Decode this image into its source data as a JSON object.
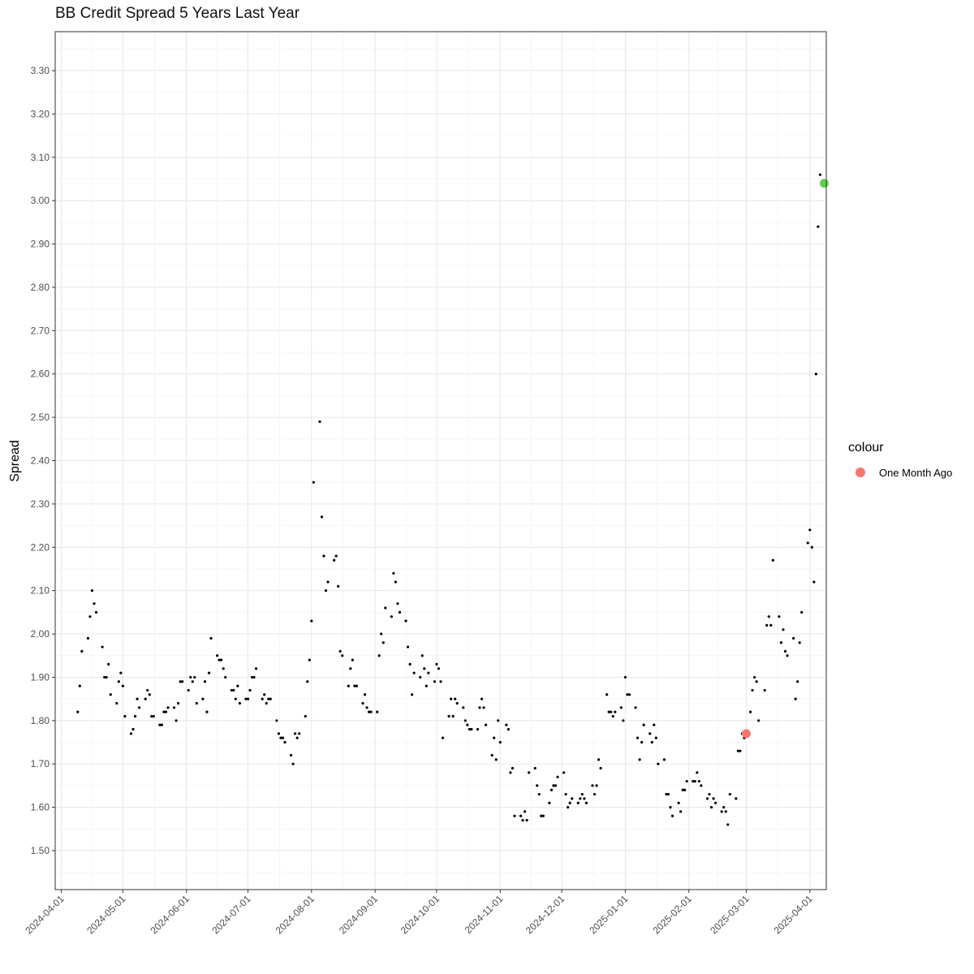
{
  "chart_data": {
    "type": "scatter",
    "title": "BB Credit Spread 5 Years Last Year",
    "xlabel": "",
    "ylabel": "Spread",
    "x_axis": "date",
    "xlim": [
      "2024-03-29",
      "2025-04-09"
    ],
    "ylim": [
      1.41,
      3.39
    ],
    "x_ticks": [
      "2024-04-01",
      "2024-05-01",
      "2024-06-01",
      "2024-07-01",
      "2024-08-01",
      "2024-09-01",
      "2024-10-01",
      "2024-11-01",
      "2024-12-01",
      "2025-01-01",
      "2025-02-01",
      "2025-03-01",
      "2025-04-01"
    ],
    "y_ticks": [
      1.5,
      1.6,
      1.7,
      1.8,
      1.9,
      2.0,
      2.1,
      2.2,
      2.3,
      2.4,
      2.5,
      2.6,
      2.7,
      2.8,
      2.9,
      3.0,
      3.1,
      3.2,
      3.3
    ],
    "grid": true,
    "legend": {
      "title": "colour",
      "position": "right",
      "entries": [
        {
          "label": "One Month Ago",
          "color": "#F8766D"
        }
      ]
    },
    "series": [
      {
        "color": "#000000",
        "points": [
          [
            "2024-04-09",
            1.82
          ],
          [
            "2024-04-10",
            1.88
          ],
          [
            "2024-04-11",
            1.96
          ],
          [
            "2024-04-14",
            1.99
          ],
          [
            "2024-04-15",
            2.04
          ],
          [
            "2024-04-16",
            2.1
          ],
          [
            "2024-04-17",
            2.07
          ],
          [
            "2024-04-18",
            2.05
          ],
          [
            "2024-04-21",
            1.97
          ],
          [
            "2024-04-22",
            1.9
          ],
          [
            "2024-04-23",
            1.9
          ],
          [
            "2024-04-24",
            1.93
          ],
          [
            "2024-04-25",
            1.86
          ],
          [
            "2024-04-28",
            1.84
          ],
          [
            "2024-04-29",
            1.89
          ],
          [
            "2024-04-30",
            1.91
          ],
          [
            "2024-05-01",
            1.88
          ],
          [
            "2024-05-02",
            1.81
          ],
          [
            "2024-05-05",
            1.77
          ],
          [
            "2024-05-06",
            1.78
          ],
          [
            "2024-05-07",
            1.81
          ],
          [
            "2024-05-08",
            1.85
          ],
          [
            "2024-05-09",
            1.83
          ],
          [
            "2024-05-12",
            1.85
          ],
          [
            "2024-05-13",
            1.87
          ],
          [
            "2024-05-14",
            1.86
          ],
          [
            "2024-05-15",
            1.81
          ],
          [
            "2024-05-16",
            1.81
          ],
          [
            "2024-05-19",
            1.79
          ],
          [
            "2024-05-20",
            1.79
          ],
          [
            "2024-05-21",
            1.82
          ],
          [
            "2024-05-22",
            1.82
          ],
          [
            "2024-05-23",
            1.83
          ],
          [
            "2024-05-26",
            1.83
          ],
          [
            "2024-05-27",
            1.8
          ],
          [
            "2024-05-28",
            1.84
          ],
          [
            "2024-05-29",
            1.89
          ],
          [
            "2024-05-30",
            1.89
          ],
          [
            "2024-06-02",
            1.87
          ],
          [
            "2024-06-03",
            1.9
          ],
          [
            "2024-06-04",
            1.89
          ],
          [
            "2024-06-05",
            1.9
          ],
          [
            "2024-06-06",
            1.84
          ],
          [
            "2024-06-09",
            1.85
          ],
          [
            "2024-06-10",
            1.89
          ],
          [
            "2024-06-11",
            1.82
          ],
          [
            "2024-06-12",
            1.91
          ],
          [
            "2024-06-13",
            1.99
          ],
          [
            "2024-06-16",
            1.95
          ],
          [
            "2024-06-17",
            1.94
          ],
          [
            "2024-06-18",
            1.94
          ],
          [
            "2024-06-19",
            1.92
          ],
          [
            "2024-06-20",
            1.9
          ],
          [
            "2024-06-23",
            1.87
          ],
          [
            "2024-06-24",
            1.87
          ],
          [
            "2024-06-25",
            1.85
          ],
          [
            "2024-06-26",
            1.88
          ],
          [
            "2024-06-27",
            1.84
          ],
          [
            "2024-06-30",
            1.85
          ],
          [
            "2024-07-01",
            1.85
          ],
          [
            "2024-07-02",
            1.87
          ],
          [
            "2024-07-03",
            1.9
          ],
          [
            "2024-07-04",
            1.9
          ],
          [
            "2024-07-05",
            1.92
          ],
          [
            "2024-07-08",
            1.85
          ],
          [
            "2024-07-09",
            1.86
          ],
          [
            "2024-07-10",
            1.84
          ],
          [
            "2024-07-11",
            1.85
          ],
          [
            "2024-07-12",
            1.85
          ],
          [
            "2024-07-15",
            1.8
          ],
          [
            "2024-07-16",
            1.77
          ],
          [
            "2024-07-17",
            1.76
          ],
          [
            "2024-07-18",
            1.76
          ],
          [
            "2024-07-19",
            1.75
          ],
          [
            "2024-07-22",
            1.72
          ],
          [
            "2024-07-23",
            1.7
          ],
          [
            "2024-07-24",
            1.77
          ],
          [
            "2024-07-25",
            1.76
          ],
          [
            "2024-07-26",
            1.77
          ],
          [
            "2024-07-29",
            1.81
          ],
          [
            "2024-07-30",
            1.89
          ],
          [
            "2024-07-31",
            1.94
          ],
          [
            "2024-08-01",
            2.03
          ],
          [
            "2024-08-02",
            2.35
          ],
          [
            "2024-08-05",
            2.49
          ],
          [
            "2024-08-06",
            2.27
          ],
          [
            "2024-08-07",
            2.18
          ],
          [
            "2024-08-08",
            2.1
          ],
          [
            "2024-08-09",
            2.12
          ],
          [
            "2024-08-12",
            2.17
          ],
          [
            "2024-08-13",
            2.18
          ],
          [
            "2024-08-14",
            2.11
          ],
          [
            "2024-08-15",
            1.96
          ],
          [
            "2024-08-16",
            1.95
          ],
          [
            "2024-08-19",
            1.88
          ],
          [
            "2024-08-20",
            1.92
          ],
          [
            "2024-08-21",
            1.94
          ],
          [
            "2024-08-22",
            1.88
          ],
          [
            "2024-08-23",
            1.88
          ],
          [
            "2024-08-26",
            1.84
          ],
          [
            "2024-08-27",
            1.86
          ],
          [
            "2024-08-28",
            1.83
          ],
          [
            "2024-08-29",
            1.82
          ],
          [
            "2024-08-30",
            1.82
          ],
          [
            "2024-09-02",
            1.82
          ],
          [
            "2024-09-03",
            1.95
          ],
          [
            "2024-09-04",
            2.0
          ],
          [
            "2024-09-05",
            1.98
          ],
          [
            "2024-09-06",
            2.06
          ],
          [
            "2024-09-09",
            2.04
          ],
          [
            "2024-09-10",
            2.14
          ],
          [
            "2024-09-11",
            2.12
          ],
          [
            "2024-09-12",
            2.07
          ],
          [
            "2024-09-13",
            2.05
          ],
          [
            "2024-09-16",
            2.03
          ],
          [
            "2024-09-17",
            1.97
          ],
          [
            "2024-09-18",
            1.93
          ],
          [
            "2024-09-19",
            1.86
          ],
          [
            "2024-09-20",
            1.91
          ],
          [
            "2024-09-23",
            1.9
          ],
          [
            "2024-09-24",
            1.95
          ],
          [
            "2024-09-25",
            1.92
          ],
          [
            "2024-09-26",
            1.88
          ],
          [
            "2024-09-27",
            1.91
          ],
          [
            "2024-09-30",
            1.89
          ],
          [
            "2024-10-01",
            1.93
          ],
          [
            "2024-10-02",
            1.92
          ],
          [
            "2024-10-03",
            1.89
          ],
          [
            "2024-10-04",
            1.76
          ],
          [
            "2024-10-07",
            1.81
          ],
          [
            "2024-10-08",
            1.85
          ],
          [
            "2024-10-09",
            1.81
          ],
          [
            "2024-10-10",
            1.85
          ],
          [
            "2024-10-11",
            1.84
          ],
          [
            "2024-10-14",
            1.83
          ],
          [
            "2024-10-15",
            1.8
          ],
          [
            "2024-10-16",
            1.79
          ],
          [
            "2024-10-17",
            1.78
          ],
          [
            "2024-10-18",
            1.78
          ],
          [
            "2024-10-21",
            1.78
          ],
          [
            "2024-10-22",
            1.83
          ],
          [
            "2024-10-23",
            1.85
          ],
          [
            "2024-10-24",
            1.83
          ],
          [
            "2024-10-25",
            1.79
          ],
          [
            "2024-10-28",
            1.72
          ],
          [
            "2024-10-29",
            1.76
          ],
          [
            "2024-10-30",
            1.71
          ],
          [
            "2024-10-31",
            1.8
          ],
          [
            "2024-11-01",
            1.75
          ],
          [
            "2024-11-04",
            1.79
          ],
          [
            "2024-11-05",
            1.78
          ],
          [
            "2024-11-06",
            1.68
          ],
          [
            "2024-11-07",
            1.69
          ],
          [
            "2024-11-08",
            1.58
          ],
          [
            "2024-11-11",
            1.58
          ],
          [
            "2024-11-12",
            1.57
          ],
          [
            "2024-11-13",
            1.59
          ],
          [
            "2024-11-14",
            1.57
          ],
          [
            "2024-11-15",
            1.68
          ],
          [
            "2024-11-18",
            1.69
          ],
          [
            "2024-11-19",
            1.65
          ],
          [
            "2024-11-20",
            1.63
          ],
          [
            "2024-11-21",
            1.58
          ],
          [
            "2024-11-22",
            1.58
          ],
          [
            "2024-11-25",
            1.61
          ],
          [
            "2024-11-26",
            1.64
          ],
          [
            "2024-11-27",
            1.65
          ],
          [
            "2024-11-28",
            1.65
          ],
          [
            "2024-11-29",
            1.67
          ],
          [
            "2024-12-02",
            1.68
          ],
          [
            "2024-12-03",
            1.63
          ],
          [
            "2024-12-04",
            1.6
          ],
          [
            "2024-12-05",
            1.61
          ],
          [
            "2024-12-06",
            1.62
          ],
          [
            "2024-12-09",
            1.61
          ],
          [
            "2024-12-10",
            1.62
          ],
          [
            "2024-12-11",
            1.63
          ],
          [
            "2024-12-12",
            1.62
          ],
          [
            "2024-12-13",
            1.61
          ],
          [
            "2024-12-16",
            1.65
          ],
          [
            "2024-12-17",
            1.63
          ],
          [
            "2024-12-18",
            1.65
          ],
          [
            "2024-12-19",
            1.71
          ],
          [
            "2024-12-20",
            1.69
          ],
          [
            "2024-12-23",
            1.86
          ],
          [
            "2024-12-24",
            1.82
          ],
          [
            "2024-12-25",
            1.82
          ],
          [
            "2024-12-26",
            1.81
          ],
          [
            "2024-12-27",
            1.82
          ],
          [
            "2024-12-30",
            1.83
          ],
          [
            "2024-12-31",
            1.8
          ],
          [
            "2025-01-01",
            1.9
          ],
          [
            "2025-01-02",
            1.86
          ],
          [
            "2025-01-03",
            1.86
          ],
          [
            "2025-01-06",
            1.83
          ],
          [
            "2025-01-07",
            1.76
          ],
          [
            "2025-01-08",
            1.71
          ],
          [
            "2025-01-09",
            1.75
          ],
          [
            "2025-01-10",
            1.79
          ],
          [
            "2025-01-13",
            1.77
          ],
          [
            "2025-01-14",
            1.75
          ],
          [
            "2025-01-15",
            1.79
          ],
          [
            "2025-01-16",
            1.76
          ],
          [
            "2025-01-17",
            1.7
          ],
          [
            "2025-01-20",
            1.71
          ],
          [
            "2025-01-21",
            1.63
          ],
          [
            "2025-01-22",
            1.63
          ],
          [
            "2025-01-23",
            1.6
          ],
          [
            "2025-01-24",
            1.58
          ],
          [
            "2025-01-27",
            1.61
          ],
          [
            "2025-01-28",
            1.59
          ],
          [
            "2025-01-29",
            1.64
          ],
          [
            "2025-01-30",
            1.64
          ],
          [
            "2025-01-31",
            1.66
          ],
          [
            "2025-02-03",
            1.66
          ],
          [
            "2025-02-04",
            1.66
          ],
          [
            "2025-02-05",
            1.68
          ],
          [
            "2025-02-06",
            1.66
          ],
          [
            "2025-02-07",
            1.65
          ],
          [
            "2025-02-10",
            1.62
          ],
          [
            "2025-02-11",
            1.63
          ],
          [
            "2025-02-12",
            1.6
          ],
          [
            "2025-02-13",
            1.62
          ],
          [
            "2025-02-14",
            1.61
          ],
          [
            "2025-02-17",
            1.59
          ],
          [
            "2025-02-18",
            1.6
          ],
          [
            "2025-02-19",
            1.59
          ],
          [
            "2025-02-20",
            1.56
          ],
          [
            "2025-02-21",
            1.63
          ],
          [
            "2025-02-24",
            1.62
          ],
          [
            "2025-02-25",
            1.73
          ],
          [
            "2025-02-26",
            1.73
          ],
          [
            "2025-02-27",
            1.77
          ],
          [
            "2025-02-28",
            1.76
          ],
          [
            "2025-03-03",
            1.82
          ],
          [
            "2025-03-04",
            1.87
          ],
          [
            "2025-03-05",
            1.9
          ],
          [
            "2025-03-06",
            1.89
          ],
          [
            "2025-03-07",
            1.8
          ],
          [
            "2025-03-10",
            1.87
          ],
          [
            "2025-03-11",
            2.02
          ],
          [
            "2025-03-12",
            2.04
          ],
          [
            "2025-03-13",
            2.02
          ],
          [
            "2025-03-14",
            2.17
          ],
          [
            "2025-03-17",
            2.04
          ],
          [
            "2025-03-18",
            1.98
          ],
          [
            "2025-03-19",
            2.01
          ],
          [
            "2025-03-20",
            1.96
          ],
          [
            "2025-03-21",
            1.95
          ],
          [
            "2025-03-24",
            1.99
          ],
          [
            "2025-03-25",
            1.85
          ],
          [
            "2025-03-26",
            1.89
          ],
          [
            "2025-03-27",
            1.98
          ],
          [
            "2025-03-28",
            2.05
          ],
          [
            "2025-03-31",
            2.21
          ],
          [
            "2025-04-01",
            2.24
          ],
          [
            "2025-04-02",
            2.2
          ],
          [
            "2025-04-03",
            2.12
          ],
          [
            "2025-04-04",
            2.6
          ],
          [
            "2025-04-05",
            2.94
          ],
          [
            "2025-04-06",
            3.06
          ]
        ]
      },
      {
        "name": "One Month Ago",
        "color": "#F8766D",
        "points": [
          [
            "2025-03-01",
            1.77
          ]
        ]
      },
      {
        "color": "#61D04F",
        "points": [
          [
            "2025-04-08",
            3.04
          ]
        ]
      }
    ]
  }
}
